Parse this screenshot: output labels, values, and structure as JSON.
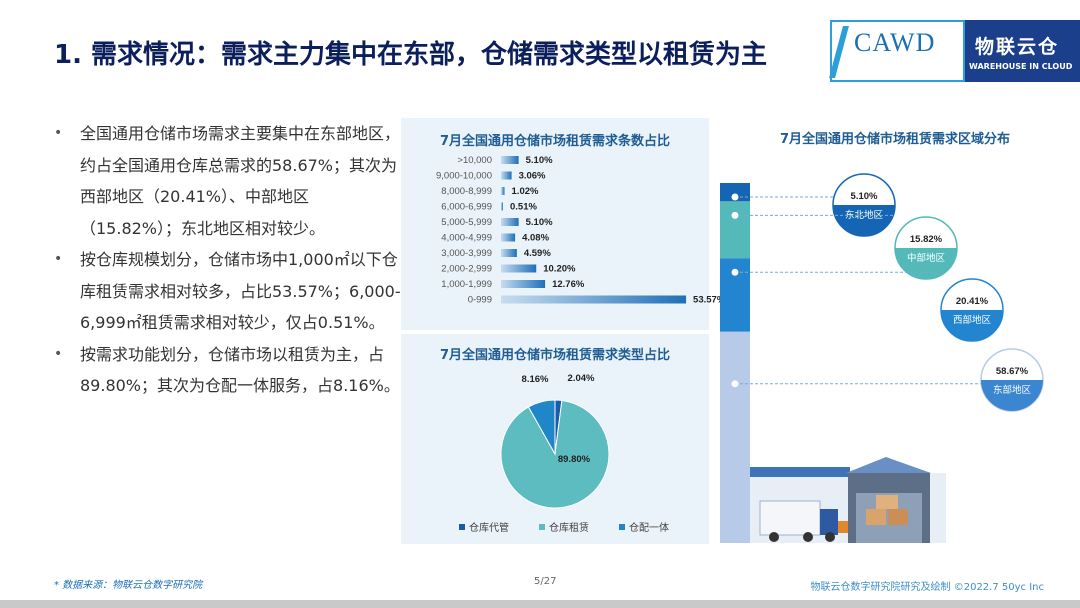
{
  "title": "1. 需求情况：需求主力集中在东部，仓储需求类型以租赁为主",
  "logo": {
    "cawd": "CAWD",
    "wlc_cn": "物联云仓",
    "wlc_en": "WAREHOUSE IN CLOUD"
  },
  "bullets": [
    "全国通用仓储市场需求主要集中在东部地区，约占全国通用仓库总需求的58.67%；其次为西部地区（20.41%）、中部地区（15.82%）；东北地区相对较少。",
    "按仓库规模划分，仓储市场中1,000㎡以下仓库租赁需求相对较多，占比53.57%；6,000-6,999㎡租赁需求相对较少，仅占0.51%。",
    "按需求功能划分，仓储市场以租赁为主，占89.80%；其次为仓配一体服务，占8.16%。"
  ],
  "bar_chart_title": "7月全国通用仓储市场租赁需求条数占比",
  "pie_chart_title": "7月全国通用仓储市场租赁需求类型占比",
  "region_chart_title": "7月全国通用仓储市场租赁需求区域分布",
  "chart_data": [
    {
      "type": "bar",
      "orientation": "horizontal",
      "categories": [
        ">10,000",
        "9,000-10,000",
        "8,000-8,999",
        "6,000-6,999",
        "5,000-5,999",
        "4,000-4,999",
        "3,000-3,999",
        "2,000-2,999",
        "1,000-1,999",
        "0-999"
      ],
      "values": [
        5.1,
        3.06,
        1.02,
        0.51,
        5.1,
        4.08,
        4.59,
        10.2,
        12.76,
        53.57
      ],
      "labels": [
        "5.10%",
        "3.06%",
        "1.02%",
        "0.51%",
        "5.10%",
        "4.08%",
        "4.59%",
        "10.20%",
        "12.76%",
        "53.57%"
      ],
      "unit": "%",
      "color": "#1f6fb8"
    },
    {
      "type": "pie",
      "categories": [
        "仓库代管",
        "仓库租赁",
        "仓配一体"
      ],
      "values": [
        2.04,
        89.8,
        8.16
      ],
      "labels": [
        "2.04%",
        "89.80%",
        "8.16%"
      ],
      "colors": [
        "#1a5ca8",
        "#5cbcc0",
        "#1f86c8"
      ],
      "legend": "bottom"
    },
    {
      "type": "bar",
      "orientation": "stacked-vertical",
      "categories": [
        "东北地区",
        "中部地区",
        "西部地区",
        "东部地区"
      ],
      "values": [
        5.1,
        15.82,
        20.41,
        58.67
      ],
      "labels": [
        "5.10%",
        "15.82%",
        "20.41%",
        "58.67%"
      ],
      "colors": [
        "#1565b5",
        "#54b9b9",
        "#2385cf",
        "#b7cbe8"
      ]
    }
  ],
  "footer": {
    "source": "* 数据来源：物联云仓数字研究院",
    "page": "5/27",
    "credit": "物联云仓数字研究院研究及绘制    ©2022.7 50yc Inc"
  }
}
